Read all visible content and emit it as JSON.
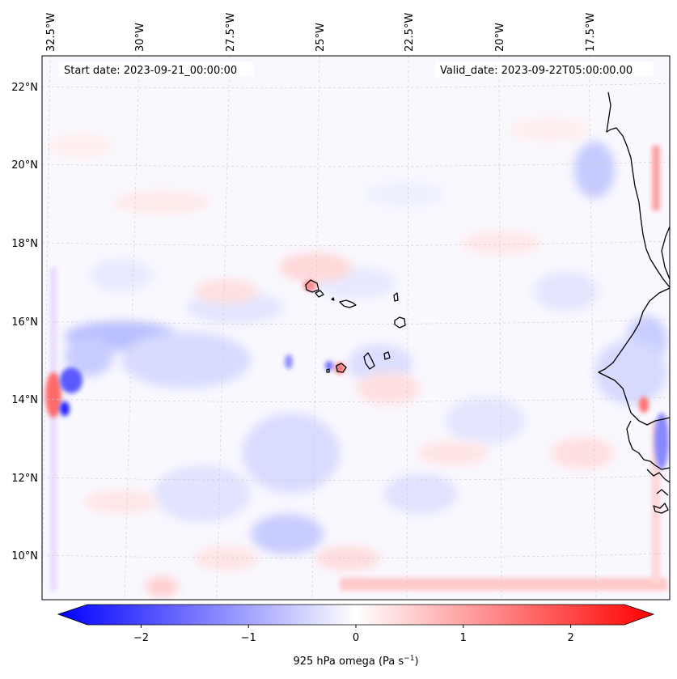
{
  "map": {
    "start_date_label": "Start date: 2023-09-21_00:00:00",
    "valid_date_label": "Valid_date: 2023-09-22T05:00:00.00",
    "lon_labels": [
      "32.5°W",
      "30°W",
      "27.5°W",
      "25°W",
      "22.5°W",
      "20°W",
      "17.5°W"
    ],
    "lat_labels": [
      "22°N",
      "20°N",
      "18°N",
      "16°N",
      "14°N",
      "12°N",
      "10°N"
    ],
    "field_colors": {
      "neutral": "#f9f8ff",
      "positive": "#ff0000",
      "negative": "#0000ff",
      "coastline": "#000000",
      "gridline": "#cccccc"
    }
  },
  "colorbar": {
    "tick_labels": [
      "−2",
      "−1",
      "0",
      "1",
      "2"
    ],
    "tick_values": [
      -2,
      -1,
      0,
      1,
      2
    ],
    "range": [
      -2.5,
      2.5
    ],
    "label": "925 hPa omega (Pa s",
    "label_sup": "−1",
    "label_close": ")",
    "cmap": "bwr"
  }
}
